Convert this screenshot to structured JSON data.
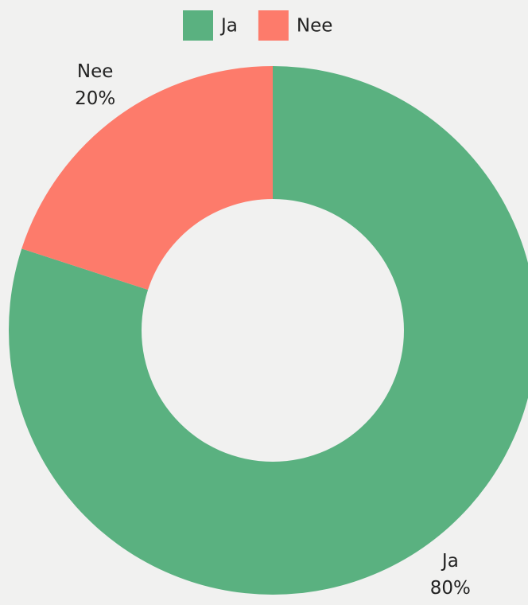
{
  "chart_data": {
    "type": "donut",
    "categories": [
      "Ja",
      "Nee"
    ],
    "values": [
      80,
      20
    ],
    "value_labels": [
      "80%",
      "20%"
    ],
    "colors": [
      "#5ab180",
      "#fd7b6b"
    ],
    "legend": "top"
  }
}
